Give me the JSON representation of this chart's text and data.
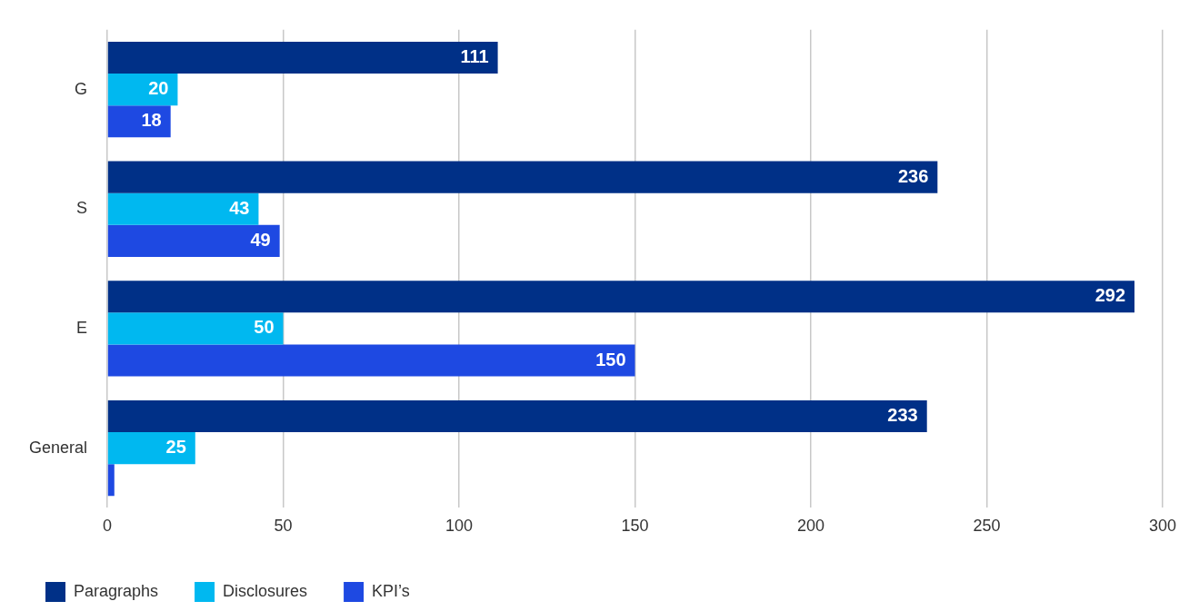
{
  "chart_data": {
    "type": "bar",
    "orientation": "horizontal",
    "categories": [
      "G",
      "S",
      "E",
      "General"
    ],
    "series": [
      {
        "name": "Paragraphs",
        "color": "#003087",
        "values": [
          111,
          236,
          292,
          233
        ],
        "value_labels": [
          "111",
          "236",
          "292",
          "233"
        ]
      },
      {
        "name": "Disclosures",
        "color": "#00b8f0",
        "values": [
          20,
          43,
          50,
          25
        ],
        "value_labels": [
          "20",
          "43",
          "50",
          "25"
        ]
      },
      {
        "name": "KPI’s",
        "color": "#1e49e2",
        "values": [
          18,
          49,
          150,
          2
        ],
        "value_labels": [
          "18",
          "49",
          "150",
          null
        ]
      }
    ],
    "xlim": [
      0,
      300
    ],
    "xticks": [
      0,
      50,
      100,
      150,
      200,
      250,
      300
    ],
    "grid": "x",
    "legend": "bottom left"
  }
}
